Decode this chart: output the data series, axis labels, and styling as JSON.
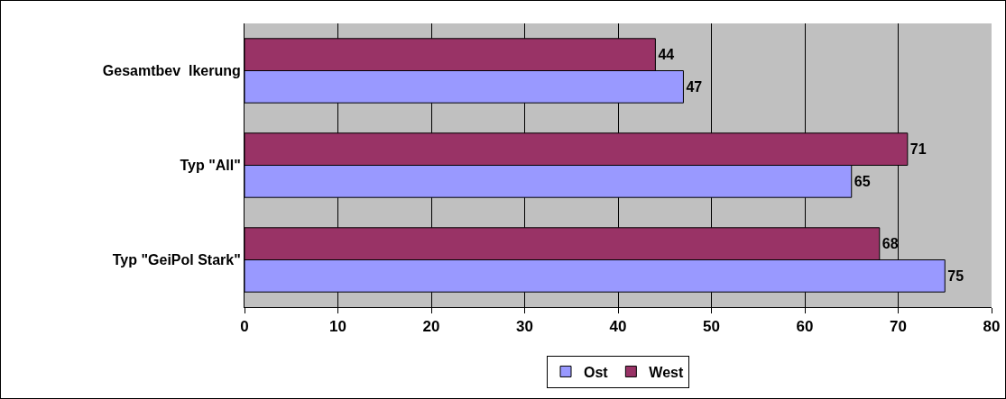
{
  "chart_data": {
    "type": "bar",
    "orientation": "horizontal",
    "categories": [
      "Gesamtbev  lkerung",
      "Typ \"All\"",
      "Typ \"GeiPol Stark\""
    ],
    "series": [
      {
        "name": "Ost",
        "color": "#9999ff",
        "values": [
          47,
          65,
          75
        ]
      },
      {
        "name": "West",
        "color": "#993366",
        "values": [
          44,
          71,
          68
        ]
      }
    ],
    "xlim": [
      0,
      80
    ],
    "xticks": [
      0,
      10,
      20,
      30,
      40,
      50,
      60,
      70,
      80
    ],
    "grid": "x",
    "legend": "bottom",
    "data_labels": true
  }
}
